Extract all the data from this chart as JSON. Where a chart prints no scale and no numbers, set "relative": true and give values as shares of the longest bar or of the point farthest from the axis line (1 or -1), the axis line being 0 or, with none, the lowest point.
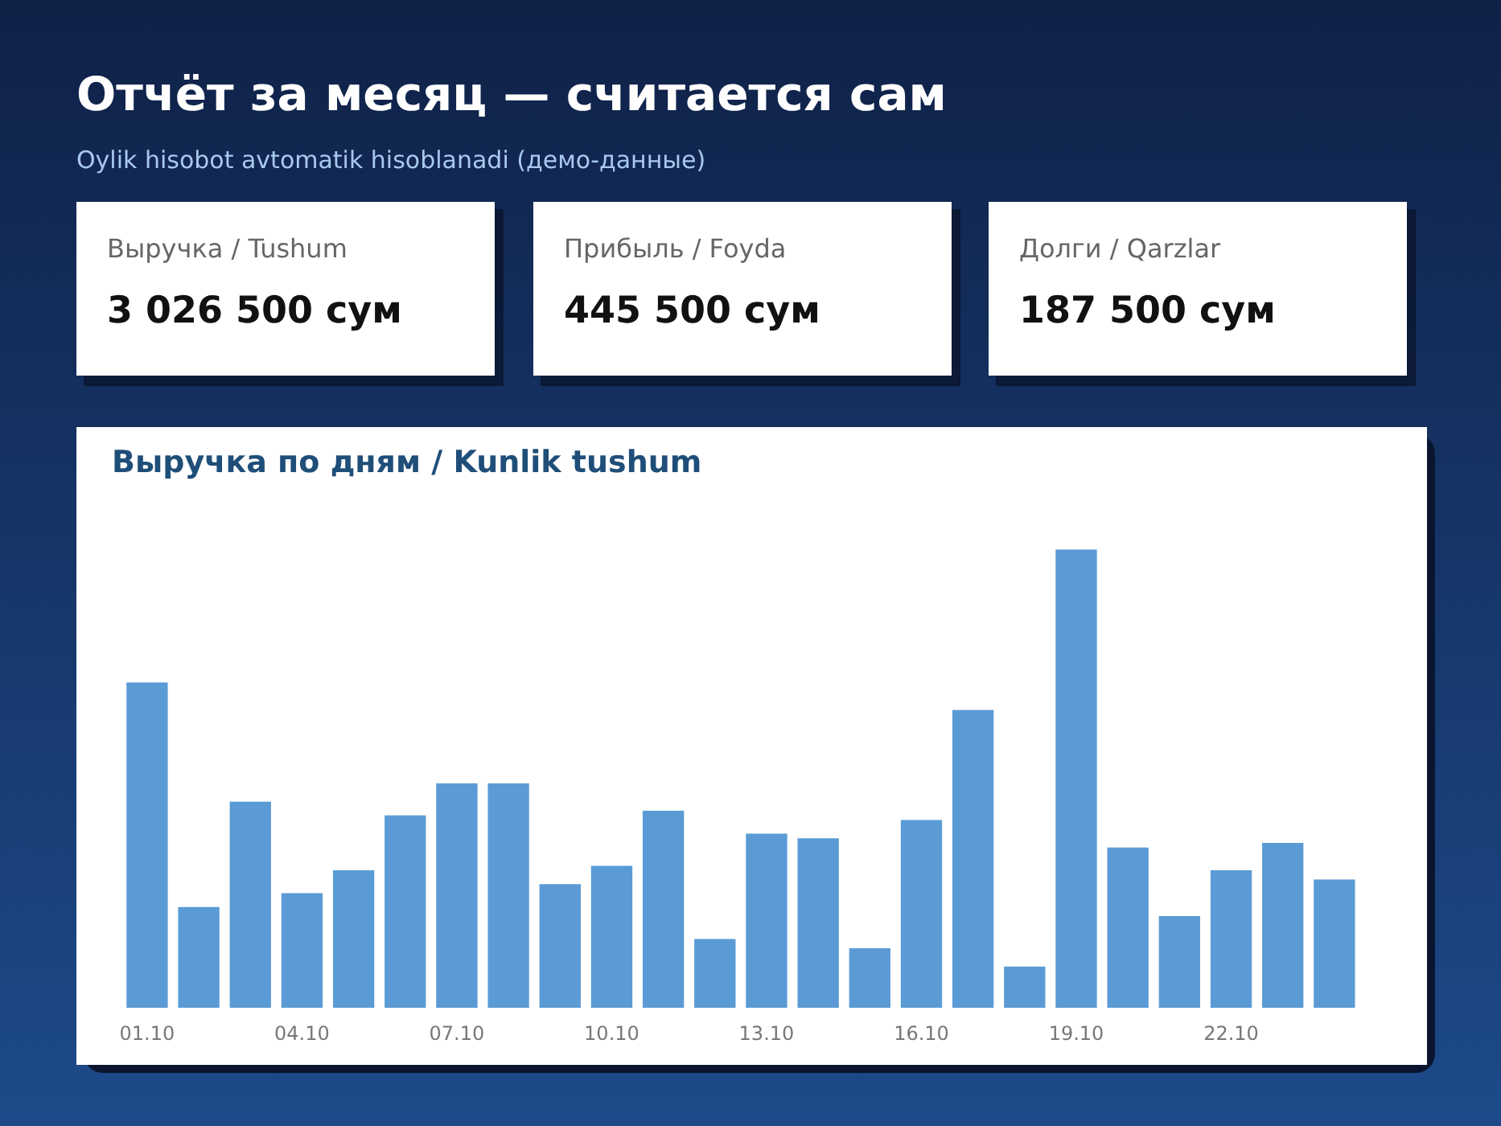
{
  "chart_data": [
    {
      "type": "other",
      "title": "Отчёт за месяц — считается сам",
      "subtitle": "Oylik hisobot avtomatik hisoblanadi (демо-данные)",
      "annotations": [
        "Выручка / Tushum",
        "3 026 500 сум",
        "Прибыль / Foyda",
        "445 500 сум",
        "Долги / Qarzlar",
        "187 500 сум"
      ]
    },
    {
      "type": "bar",
      "title": "Выручка по дням / Kunlik tushum",
      "relative": true,
      "color": "#5b9bd5",
      "grid": false,
      "categories": [
        "01.10",
        null,
        null,
        "04.10",
        null,
        null,
        "07.10",
        null,
        null,
        "10.10",
        null,
        null,
        "13.10",
        null,
        null,
        "16.10",
        null,
        null,
        "19.10",
        null,
        null,
        "22.10",
        null,
        null
      ],
      "values": [
        0.71,
        0.22,
        0.45,
        0.25,
        0.3,
        0.42,
        0.49,
        0.49,
        0.27,
        0.31,
        0.43,
        0.15,
        0.38,
        0.37,
        0.13,
        0.41,
        0.65,
        0.09,
        1,
        0.35,
        0.2,
        0.3,
        0.36,
        0.28
      ]
    }
  ]
}
